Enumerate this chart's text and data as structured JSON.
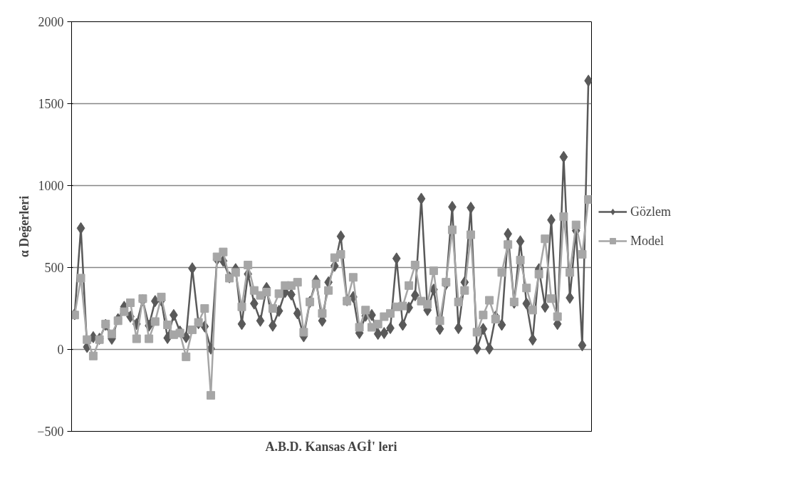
{
  "chart_data": {
    "type": "line",
    "xlabel": "A.B.D. Kansas AGİ' leri",
    "ylabel": "α Değerleri",
    "categories": [
      null,
      null,
      null,
      null,
      null,
      null,
      null,
      null,
      null,
      null,
      null,
      null,
      null,
      null,
      null,
      null,
      null,
      null,
      null,
      null,
      null,
      null,
      null,
      null,
      null,
      null,
      null,
      null,
      null,
      null,
      null,
      null,
      null,
      null,
      null,
      null,
      null,
      null,
      null,
      null,
      null,
      null,
      null,
      null,
      null,
      null,
      null,
      null,
      null,
      null,
      null,
      null,
      null,
      null,
      null,
      null,
      null,
      null,
      null,
      null,
      null,
      null,
      null,
      null,
      null,
      null,
      null,
      null,
      null,
      null,
      null,
      null,
      null,
      null,
      null,
      null,
      null,
      null,
      null,
      null,
      null,
      null,
      null,
      null
    ],
    "series": [
      {
        "name": "Gözlem",
        "color": "#595959",
        "marker": "diamond",
        "values": [
          215,
          740,
          15,
          75,
          65,
          150,
          65,
          185,
          260,
          200,
          155,
          300,
          145,
          295,
          300,
          70,
          210,
          110,
          75,
          495,
          160,
          140,
          5,
          550,
          540,
          440,
          490,
          155,
          460,
          280,
          175,
          375,
          145,
          235,
          350,
          335,
          220,
          80,
          290,
          420,
          175,
          410,
          510,
          690,
          300,
          320,
          100,
          205,
          210,
          95,
          100,
          130,
          555,
          150,
          255,
          330,
          920,
          240,
          365,
          125,
          400,
          870,
          130,
          410,
          865,
          5,
          125,
          5,
          200,
          150,
          705,
          285,
          660,
          280,
          60,
          490,
          260,
          790,
          155,
          1175,
          315,
          725,
          25,
          1640
        ]
      },
      {
        "name": "Model",
        "color": "#a6a6a6",
        "marker": "square",
        "values": [
          210,
          435,
          60,
          -40,
          60,
          155,
          95,
          175,
          230,
          285,
          65,
          310,
          65,
          170,
          320,
          150,
          90,
          100,
          -45,
          120,
          165,
          250,
          -280,
          565,
          595,
          435,
          470,
          260,
          515,
          360,
          330,
          350,
          250,
          340,
          390,
          390,
          410,
          105,
          290,
          400,
          220,
          360,
          560,
          580,
          295,
          440,
          135,
          240,
          135,
          155,
          200,
          220,
          260,
          265,
          390,
          515,
          295,
          275,
          480,
          175,
          410,
          730,
          290,
          360,
          700,
          105,
          210,
          300,
          185,
          470,
          640,
          290,
          545,
          375,
          240,
          460,
          675,
          310,
          200,
          810,
          470,
          760,
          580,
          915
        ]
      }
    ],
    "ylim": [
      -500,
      2000
    ],
    "yticks": [
      -500,
      0,
      500,
      1000,
      1500,
      2000
    ],
    "grid": "y",
    "legend": "right",
    "tick_labels": "y",
    "line_style": "solid"
  }
}
